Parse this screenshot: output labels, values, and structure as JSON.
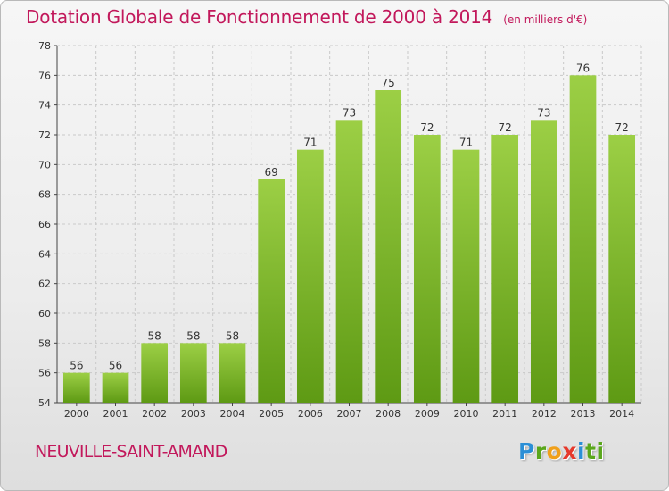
{
  "chart_data": {
    "type": "bar",
    "title": "Dotation Globale de Fonctionnement de 2000 à 2014",
    "subtitle": "(en milliers d'€)",
    "categories": [
      "2000",
      "2001",
      "2002",
      "2003",
      "2004",
      "2005",
      "2006",
      "2007",
      "2008",
      "2009",
      "2010",
      "2011",
      "2012",
      "2013",
      "2014"
    ],
    "values": [
      56,
      56,
      58,
      58,
      58,
      69,
      71,
      73,
      75,
      72,
      71,
      72,
      73,
      76,
      72
    ],
    "ylim": [
      54,
      78
    ],
    "yticks": [
      54,
      56,
      58,
      60,
      62,
      64,
      66,
      68,
      70,
      72,
      74,
      76,
      78
    ],
    "grid": true,
    "colors": {
      "bar_top": "#9ccf45",
      "bar_bottom": "#5e9a14",
      "grid": "#c9c9c9",
      "axis": "#444444"
    }
  },
  "place_name": "NEUVILLE-SAINT-AMAND",
  "logo_letters": [
    "P",
    "r",
    "o",
    "x",
    "i",
    "ti"
  ]
}
